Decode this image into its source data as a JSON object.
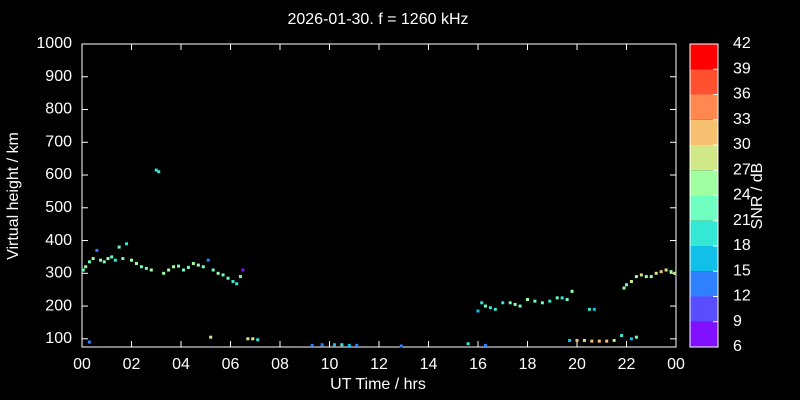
{
  "chart_data": {
    "type": "scatter",
    "title": "2026-01-30. f = 1260 kHz",
    "xlabel": "UT Time / hrs",
    "ylabel": "Virtual height / km",
    "xlim": [
      0,
      24
    ],
    "xticks": [
      {
        "value": 0,
        "label": "00"
      },
      {
        "value": 2,
        "label": "02"
      },
      {
        "value": 4,
        "label": "04"
      },
      {
        "value": 6,
        "label": "06"
      },
      {
        "value": 8,
        "label": "08"
      },
      10,
      12,
      14,
      16,
      18,
      20,
      22,
      {
        "value": 24,
        "label": "00"
      }
    ],
    "ylim": [
      75,
      1000
    ],
    "yticks": [
      100,
      200,
      300,
      400,
      500,
      600,
      700,
      800,
      900,
      1000
    ],
    "colorbar": {
      "label": "SNR / dB",
      "clim": [
        6,
        42
      ],
      "ticks": [
        6,
        9,
        12,
        15,
        18,
        21,
        24,
        27,
        30,
        33,
        36,
        39,
        42
      ],
      "colors": [
        "#8010ff",
        "#5a4cff",
        "#2f80ff",
        "#10c0e8",
        "#35e8d5",
        "#70ffc0",
        "#a0ffa0",
        "#d0e888",
        "#f5c070",
        "#ff8850",
        "#ff5030",
        "#ff0000"
      ]
    },
    "x": [
      0.05,
      0.15,
      0.3,
      0.45,
      0.6,
      0.75,
      0.9,
      1.05,
      1.2,
      1.35,
      1.5,
      1.65,
      1.8,
      2.0,
      2.2,
      2.4,
      2.6,
      2.8,
      3.0,
      3.1,
      3.3,
      3.5,
      3.7,
      3.9,
      4.1,
      4.3,
      4.5,
      4.7,
      4.9,
      5.1,
      5.3,
      5.5,
      5.7,
      5.9,
      6.1,
      6.25,
      6.4,
      6.5,
      0.3,
      5.2,
      6.7,
      6.9,
      7.1,
      9.3,
      9.7,
      10.2,
      10.5,
      10.8,
      11.1,
      12.9,
      15.6,
      16.3,
      16.0,
      16.15,
      16.3,
      16.5,
      16.7,
      17.0,
      17.3,
      17.5,
      17.7,
      18.0,
      18.3,
      18.6,
      18.9,
      19.2,
      19.4,
      19.6,
      19.8,
      20.5,
      20.7,
      19.7,
      20.0,
      20.3,
      20.6,
      20.9,
      21.2,
      21.5,
      21.8,
      22.2,
      22.4,
      21.9,
      22.0,
      22.2,
      22.4,
      22.6,
      22.8,
      23.0,
      23.2,
      23.4,
      23.6,
      23.8,
      23.95
    ],
    "y": [
      310,
      320,
      335,
      345,
      370,
      340,
      335,
      345,
      350,
      340,
      380,
      345,
      390,
      340,
      330,
      320,
      315,
      310,
      615,
      610,
      300,
      310,
      320,
      322,
      310,
      318,
      330,
      325,
      320,
      340,
      310,
      300,
      295,
      285,
      275,
      268,
      290,
      310,
      90,
      105,
      100,
      100,
      97,
      80,
      82,
      82,
      82,
      80,
      80,
      78,
      85,
      80,
      185,
      210,
      200,
      195,
      190,
      210,
      210,
      205,
      200,
      220,
      215,
      210,
      215,
      225,
      225,
      220,
      245,
      190,
      190,
      95,
      95,
      95,
      93,
      93,
      93,
      95,
      110,
      100,
      105,
      255,
      265,
      275,
      290,
      295,
      290,
      290,
      300,
      305,
      310,
      305,
      300
    ],
    "snr": [
      22,
      24,
      22,
      24,
      14,
      24,
      22,
      24,
      22,
      19,
      21,
      22,
      20,
      24,
      24,
      22,
      22,
      24,
      20,
      20,
      24,
      24,
      24,
      22,
      21,
      22,
      24,
      24,
      22,
      12,
      22,
      24,
      22,
      21,
      19,
      20,
      22,
      8,
      14,
      27,
      27,
      28,
      20,
      12,
      14,
      17,
      20,
      17,
      14,
      14,
      18,
      14,
      17,
      19,
      21,
      19,
      18,
      20,
      22,
      24,
      22,
      24,
      21,
      22,
      19,
      22,
      20,
      21,
      24,
      20,
      17,
      15,
      30,
      29,
      30,
      31,
      30,
      27,
      20,
      15,
      22,
      24,
      22,
      27,
      24,
      27,
      24,
      24,
      27,
      30,
      27,
      24,
      27
    ]
  }
}
